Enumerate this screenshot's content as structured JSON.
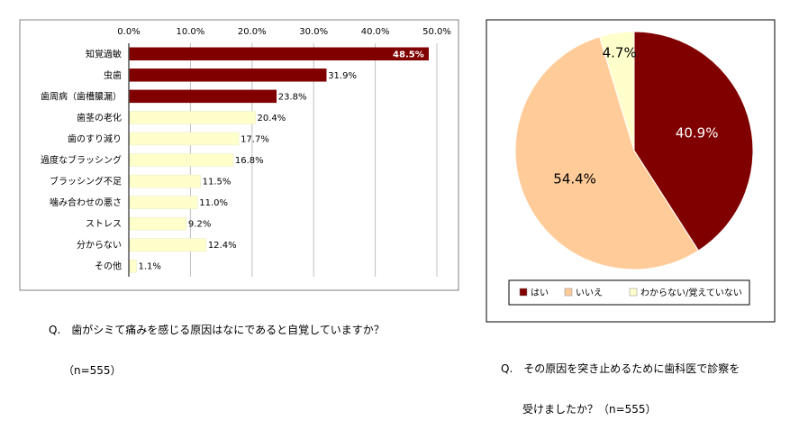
{
  "colors": {
    "dark_red": "#800000",
    "light_peach": "#FFCC99",
    "light_yellow": "#FFFFCC",
    "grid": "#c0c0c0",
    "frame": "#808080"
  },
  "chart_data": [
    {
      "type": "bar",
      "orientation": "horizontal",
      "categories": [
        "知覚過敏",
        "虫歯",
        "歯周病（歯槽膿漏）",
        "歯茎の老化",
        "歯のすり減り",
        "過度なブラッシング",
        "ブラッシング不足",
        "噛み合わせの悪さ",
        "ストレス",
        "分からない",
        "その他"
      ],
      "values": [
        48.5,
        31.9,
        23.8,
        20.4,
        17.7,
        16.8,
        11.5,
        11.0,
        9.2,
        12.4,
        1.1
      ],
      "value_labels": [
        "48.5%",
        "31.9%",
        "23.8%",
        "20.4%",
        "17.7%",
        "16.8%",
        "11.5%",
        "11.0%",
        "9.2%",
        "12.4%",
        "1.1%"
      ],
      "highlight_count": 3,
      "bar_colors": [
        "#800000",
        "#FFFFCC"
      ],
      "xlim": [
        0,
        50
      ],
      "xticks": [
        "0.0%",
        "10.0%",
        "20.0%",
        "30.0%",
        "40.0%",
        "50.0%"
      ],
      "grid": true,
      "caption_line1": "Q.　歯がシミて痛みを感じる原因はなにであると自覚していますか？",
      "caption_line2": "（n=555）"
    },
    {
      "type": "pie",
      "slices": [
        {
          "label": "はい",
          "value": 40.9,
          "text": "40.9%",
          "color": "#800000",
          "text_color": "#ffffff"
        },
        {
          "label": "いいえ",
          "value": 54.4,
          "text": "54.4%",
          "color": "#FFCC99",
          "text_color": "#000000"
        },
        {
          "label": "わからない/覚えていない",
          "value": 4.7,
          "text": "4.7%",
          "color": "#FFFFCC",
          "text_color": "#000000"
        }
      ],
      "legend_position": "bottom",
      "caption_line1": "Q.　その原因を突き止めるために歯科医で診察を",
      "caption_line2": "受けましたか？（n=555）"
    }
  ]
}
